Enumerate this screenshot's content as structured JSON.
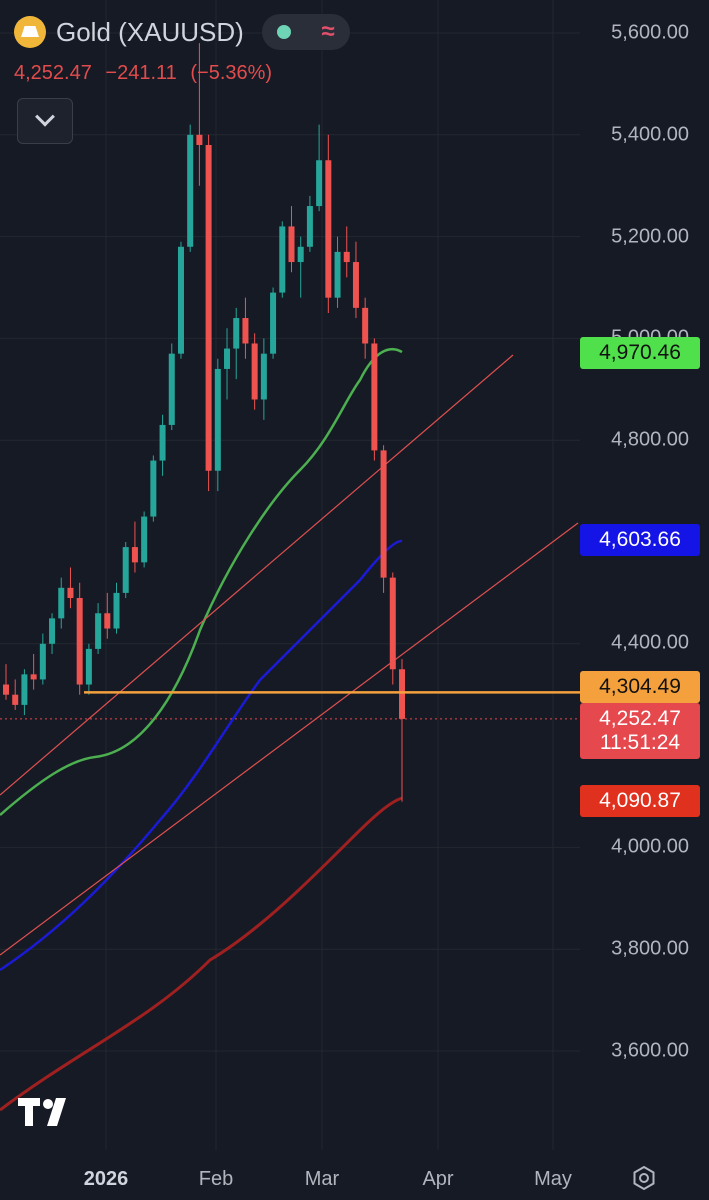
{
  "header": {
    "symbol": "Gold (XAUUSD)",
    "last": "4,252.47",
    "change": "−241.11",
    "change_pct": "(−5.36%)"
  },
  "icons": [
    "gold-bar-logo",
    "market-status-dot",
    "wave-icon",
    "chevron-down-icon",
    "tradingview-logo",
    "settings-icon"
  ],
  "price_axis": [
    "5,600.00",
    "5,400.00",
    "5,200.00",
    "5,000.00",
    "4,800.00",
    "4,400.00",
    "4,000.00",
    "3,800.00",
    "3,600.00"
  ],
  "time_axis": [
    "2026",
    "Feb",
    "Mar",
    "Apr",
    "May"
  ],
  "tags": {
    "ma_green": {
      "value": "4,970.46",
      "color": "#4caf50"
    },
    "ma_blue": {
      "value": "4,603.66",
      "color": "#1b1bd6"
    },
    "hline": {
      "value": "4,304.49",
      "color": "#f4a13d"
    },
    "last": {
      "value": "4,252.47",
      "countdown": "11:51:24",
      "color": "#e5484d"
    },
    "ma_red": {
      "value": "4,090.87",
      "color": "#d92a2a"
    }
  },
  "chart_data": {
    "type": "candlestick",
    "ylim": [
      3500,
      5650
    ],
    "y_ticks": [
      3600,
      3800,
      4000,
      4400,
      4800,
      5000,
      5200,
      5400,
      5600
    ],
    "x_ticks": [
      "2026",
      "Feb",
      "Mar",
      "Apr",
      "May"
    ],
    "candles": [
      {
        "o": 4320,
        "h": 4360,
        "l": 4290,
        "c": 4300,
        "up": false
      },
      {
        "o": 4300,
        "h": 4330,
        "l": 4270,
        "c": 4280,
        "up": false
      },
      {
        "o": 4280,
        "h": 4350,
        "l": 4260,
        "c": 4340,
        "up": true
      },
      {
        "o": 4340,
        "h": 4380,
        "l": 4310,
        "c": 4330,
        "up": false
      },
      {
        "o": 4330,
        "h": 4420,
        "l": 4320,
        "c": 4400,
        "up": true
      },
      {
        "o": 4400,
        "h": 4460,
        "l": 4380,
        "c": 4450,
        "up": true
      },
      {
        "o": 4450,
        "h": 4530,
        "l": 4430,
        "c": 4510,
        "up": true
      },
      {
        "o": 4510,
        "h": 4550,
        "l": 4470,
        "c": 4490,
        "up": false
      },
      {
        "o": 4490,
        "h": 4520,
        "l": 4300,
        "c": 4320,
        "up": false
      },
      {
        "o": 4320,
        "h": 4400,
        "l": 4300,
        "c": 4390,
        "up": true
      },
      {
        "o": 4390,
        "h": 4480,
        "l": 4380,
        "c": 4460,
        "up": true
      },
      {
        "o": 4460,
        "h": 4500,
        "l": 4410,
        "c": 4430,
        "up": false
      },
      {
        "o": 4430,
        "h": 4520,
        "l": 4420,
        "c": 4500,
        "up": true
      },
      {
        "o": 4500,
        "h": 4600,
        "l": 4490,
        "c": 4590,
        "up": true
      },
      {
        "o": 4590,
        "h": 4640,
        "l": 4540,
        "c": 4560,
        "up": false
      },
      {
        "o": 4560,
        "h": 4660,
        "l": 4550,
        "c": 4650,
        "up": true
      },
      {
        "o": 4650,
        "h": 4770,
        "l": 4640,
        "c": 4760,
        "up": true
      },
      {
        "o": 4760,
        "h": 4850,
        "l": 4730,
        "c": 4830,
        "up": true
      },
      {
        "o": 4830,
        "h": 4990,
        "l": 4820,
        "c": 4970,
        "up": true
      },
      {
        "o": 4970,
        "h": 5190,
        "l": 4960,
        "c": 5180,
        "up": true
      },
      {
        "o": 5180,
        "h": 5420,
        "l": 5170,
        "c": 5400,
        "up": true
      },
      {
        "o": 5400,
        "h": 5580,
        "l": 5300,
        "c": 5380,
        "up": false
      },
      {
        "o": 5380,
        "h": 5400,
        "l": 4700,
        "c": 4740,
        "up": false
      },
      {
        "o": 4740,
        "h": 4960,
        "l": 4700,
        "c": 4940,
        "up": true
      },
      {
        "o": 4940,
        "h": 5020,
        "l": 4880,
        "c": 4980,
        "up": true
      },
      {
        "o": 4980,
        "h": 5060,
        "l": 4920,
        "c": 5040,
        "up": true
      },
      {
        "o": 5040,
        "h": 5080,
        "l": 4960,
        "c": 4990,
        "up": false
      },
      {
        "o": 4990,
        "h": 5010,
        "l": 4860,
        "c": 4880,
        "up": false
      },
      {
        "o": 4880,
        "h": 5000,
        "l": 4840,
        "c": 4970,
        "up": true
      },
      {
        "o": 4970,
        "h": 5100,
        "l": 4960,
        "c": 5090,
        "up": true
      },
      {
        "o": 5090,
        "h": 5230,
        "l": 5080,
        "c": 5220,
        "up": true
      },
      {
        "o": 5220,
        "h": 5260,
        "l": 5130,
        "c": 5150,
        "up": false
      },
      {
        "o": 5150,
        "h": 5200,
        "l": 5080,
        "c": 5180,
        "up": true
      },
      {
        "o": 5180,
        "h": 5280,
        "l": 5170,
        "c": 5260,
        "up": true
      },
      {
        "o": 5260,
        "h": 5420,
        "l": 5250,
        "c": 5350,
        "up": true
      },
      {
        "o": 5350,
        "h": 5400,
        "l": 5050,
        "c": 5080,
        "up": false
      },
      {
        "o": 5080,
        "h": 5200,
        "l": 5060,
        "c": 5170,
        "up": true
      },
      {
        "o": 5170,
        "h": 5220,
        "l": 5120,
        "c": 5150,
        "up": false
      },
      {
        "o": 5150,
        "h": 5190,
        "l": 5040,
        "c": 5060,
        "up": false
      },
      {
        "o": 5060,
        "h": 5080,
        "l": 4960,
        "c": 4990,
        "up": false
      },
      {
        "o": 4990,
        "h": 5000,
        "l": 4760,
        "c": 4780,
        "up": false
      },
      {
        "o": 4780,
        "h": 4790,
        "l": 4500,
        "c": 4530,
        "up": false
      },
      {
        "o": 4530,
        "h": 4540,
        "l": 4320,
        "c": 4350,
        "up": false
      },
      {
        "o": 4350,
        "h": 4370,
        "l": 4090,
        "c": 4252.47,
        "up": false
      }
    ],
    "moving_averages": [
      {
        "color": "green",
        "last": 4970.46
      },
      {
        "color": "blue",
        "last": 4603.66
      },
      {
        "color": "dark-red",
        "last": 4090.87
      }
    ],
    "horizontal_line": 4304.49,
    "last_price": 4252.47
  }
}
